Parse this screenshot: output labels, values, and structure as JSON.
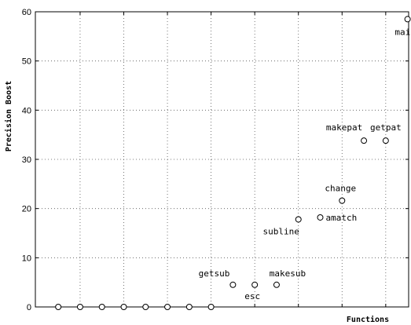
{
  "chart_data": {
    "type": "scatter",
    "title": "",
    "xlabel": "Functions",
    "ylabel": "Precision Boost",
    "ylim": [
      0,
      60
    ],
    "yticks": [
      0,
      10,
      20,
      30,
      40,
      50,
      60
    ],
    "xlim": [
      -0.05,
      17.05
    ],
    "grid": true,
    "marker": "open-circle",
    "points": [
      {
        "x": 1,
        "y": 0,
        "label": ""
      },
      {
        "x": 2,
        "y": 0,
        "label": ""
      },
      {
        "x": 3,
        "y": 0,
        "label": ""
      },
      {
        "x": 4,
        "y": 0,
        "label": ""
      },
      {
        "x": 5,
        "y": 0,
        "label": ""
      },
      {
        "x": 6,
        "y": 0,
        "label": ""
      },
      {
        "x": 7,
        "y": 0,
        "label": ""
      },
      {
        "x": 8,
        "y": 0,
        "label": ""
      },
      {
        "x": 9,
        "y": 4.5,
        "label": "getsub"
      },
      {
        "x": 10,
        "y": 4.5,
        "label": "esc"
      },
      {
        "x": 11,
        "y": 4.5,
        "label": "makesub"
      },
      {
        "x": 12,
        "y": 17.8,
        "label": "subline"
      },
      {
        "x": 13,
        "y": 18.2,
        "label": "amatch"
      },
      {
        "x": 14,
        "y": 21.6,
        "label": "change"
      },
      {
        "x": 15,
        "y": 33.8,
        "label": "makepat"
      },
      {
        "x": 16,
        "y": 33.8,
        "label": "getpat"
      },
      {
        "x": 17,
        "y": 58.5,
        "label": "main"
      }
    ]
  }
}
